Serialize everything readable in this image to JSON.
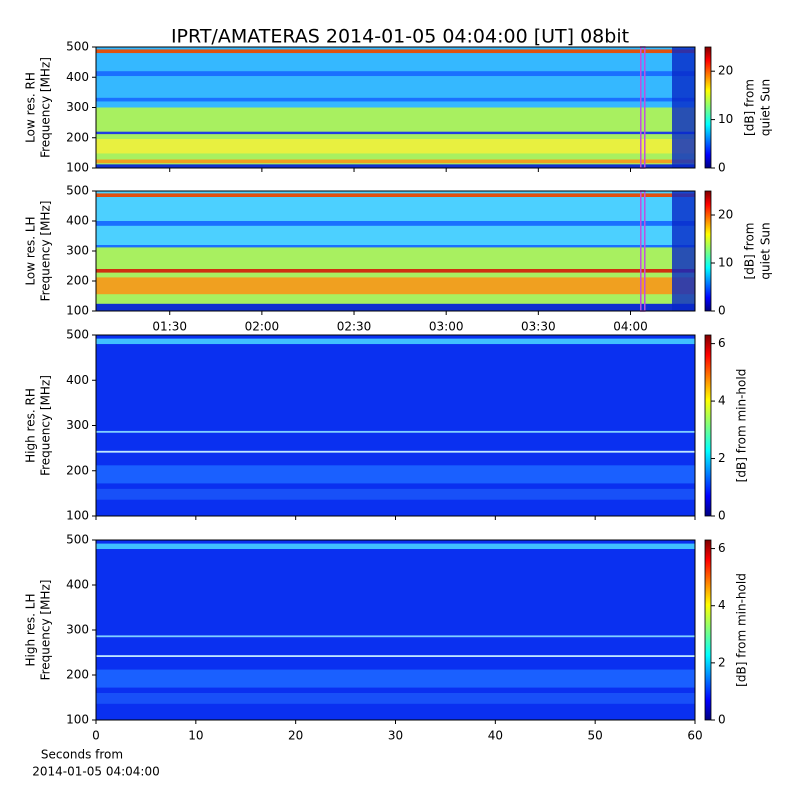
{
  "title": "IPRT/AMATERAS 2014-01-05 04:04:00 [UT]   08bit",
  "xlabel": [
    "Seconds from",
    "2014-01-05 04:04:00"
  ],
  "chart_data": [
    {
      "type": "spectrogram",
      "ylabel": [
        "Low res. RH",
        "Frequency [MHz]"
      ],
      "ylim": [
        100,
        500
      ],
      "yticks": [
        100,
        200,
        300,
        400,
        500
      ],
      "xlim": [
        66,
        261
      ],
      "xticks": [
        {
          "value": 90,
          "label": "01:30"
        },
        {
          "value": 120,
          "label": "02:00"
        },
        {
          "value": 150,
          "label": "02:30"
        },
        {
          "value": 180,
          "label": "03:00"
        },
        {
          "value": 210,
          "label": "03:30"
        },
        {
          "value": 240,
          "label": "04:00"
        }
      ],
      "xtick_labels": false,
      "marker_x": 244,
      "marker_color": "#c050e0",
      "colorbar": {
        "label": [
          "[dB] from",
          "quiet Sun"
        ],
        "lim": [
          0,
          25
        ],
        "ticks": [
          0,
          10,
          20
        ],
        "colormap": "jet"
      }
    },
    {
      "type": "spectrogram",
      "ylabel": [
        "Low res. LH",
        "Frequency [MHz]"
      ],
      "ylim": [
        100,
        500
      ],
      "yticks": [
        100,
        200,
        300,
        400,
        500
      ],
      "xlim": [
        66,
        261
      ],
      "xticks": [
        {
          "value": 90,
          "label": "01:30"
        },
        {
          "value": 120,
          "label": "02:00"
        },
        {
          "value": 150,
          "label": "02:30"
        },
        {
          "value": 180,
          "label": "03:00"
        },
        {
          "value": 210,
          "label": "03:30"
        },
        {
          "value": 240,
          "label": "04:00"
        }
      ],
      "xtick_labels": true,
      "marker_x": 244,
      "marker_color": "#c050e0",
      "colorbar": {
        "label": [
          "[dB] from",
          "quiet Sun"
        ],
        "lim": [
          0,
          25
        ],
        "ticks": [
          0,
          10,
          20
        ],
        "colormap": "jet"
      }
    },
    {
      "type": "spectrogram",
      "ylabel": [
        "High res. RH",
        "Frequency [MHz]"
      ],
      "ylim": [
        100,
        500
      ],
      "yticks": [
        100,
        200,
        300,
        400,
        500
      ],
      "xlim": [
        0,
        60
      ],
      "xticks": [
        0,
        10,
        20,
        30,
        40,
        50,
        60
      ],
      "xtick_labels": false,
      "colorbar": {
        "label": [
          "[dB] from min-hold"
        ],
        "lim": [
          0,
          6.3
        ],
        "ticks": [
          0,
          2,
          4,
          6
        ],
        "colormap": "jet"
      }
    },
    {
      "type": "spectrogram",
      "ylabel": [
        "High res. LH",
        "Frequency [MHz]"
      ],
      "ylim": [
        100,
        500
      ],
      "yticks": [
        100,
        200,
        300,
        400,
        500
      ],
      "xlim": [
        0,
        60
      ],
      "xticks": [
        0,
        10,
        20,
        30,
        40,
        50,
        60
      ],
      "xtick_labels": true,
      "colorbar": {
        "label": [
          "[dB] from min-hold"
        ],
        "lim": [
          0,
          6.3
        ],
        "ticks": [
          0,
          2,
          4,
          6
        ],
        "colormap": "jet"
      }
    }
  ]
}
